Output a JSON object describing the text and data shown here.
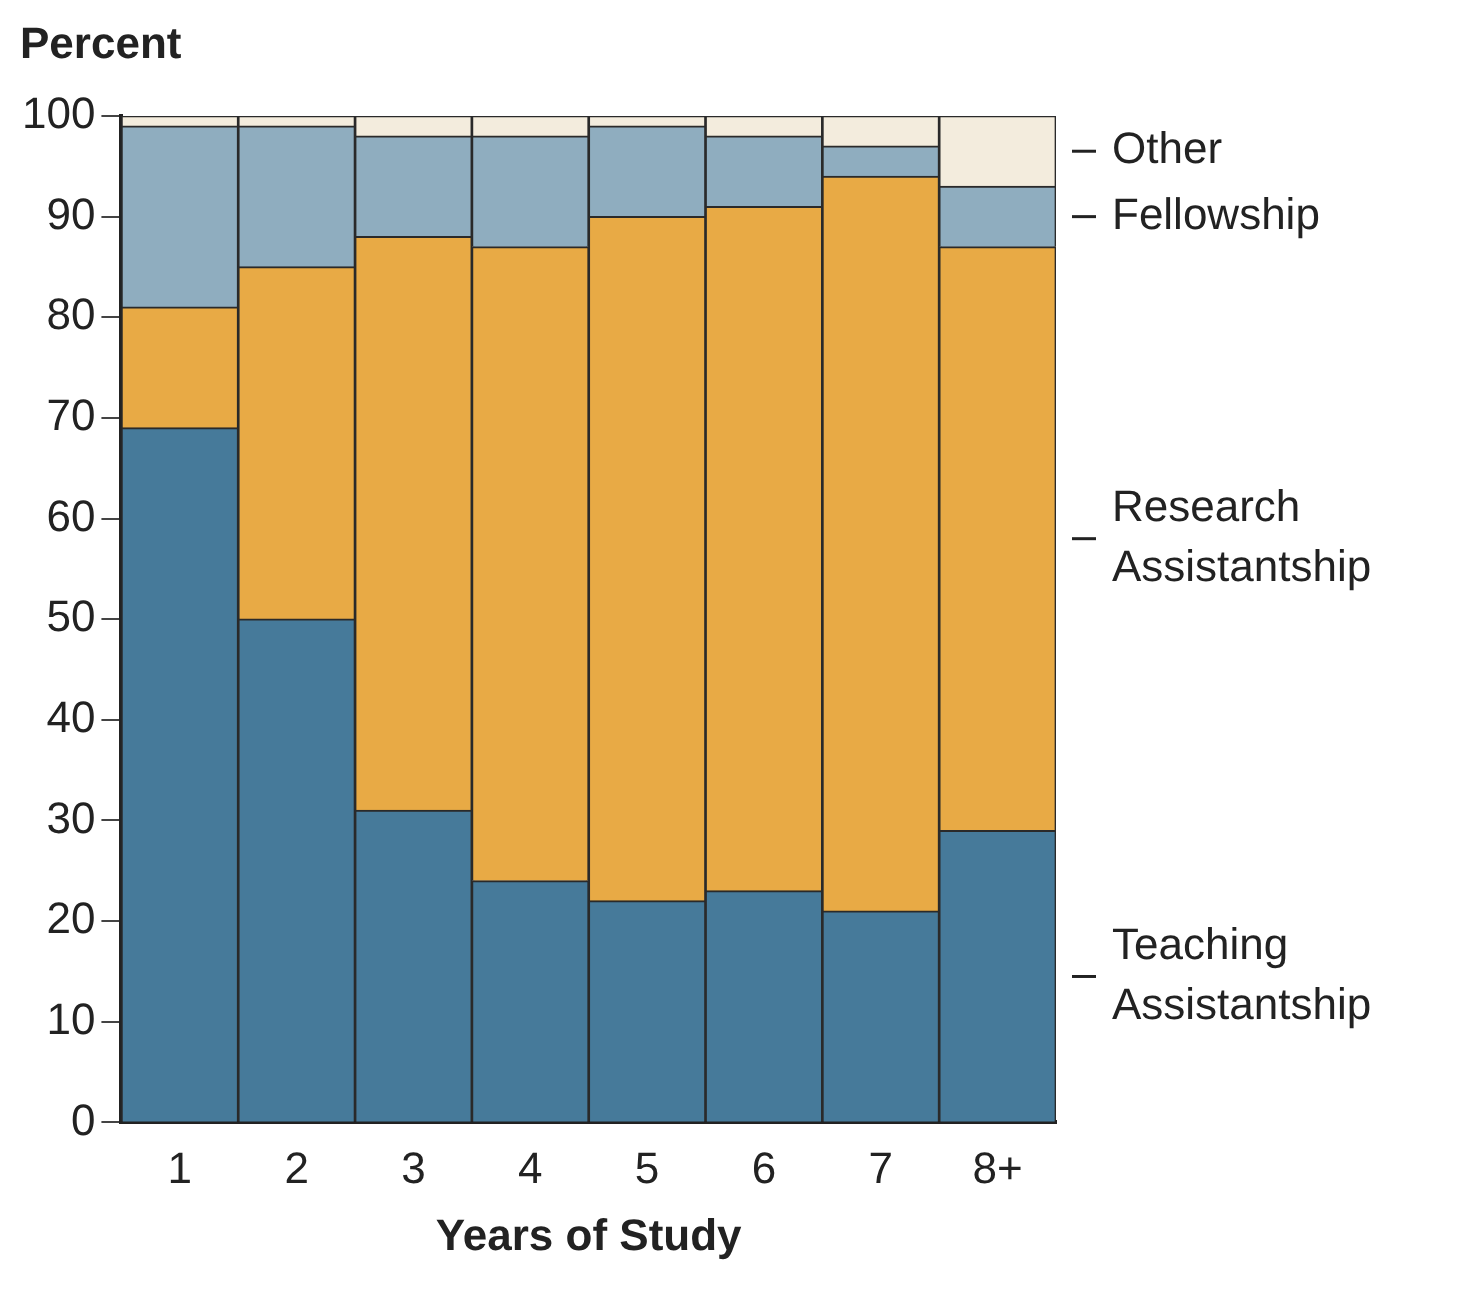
{
  "chart_data": {
    "type": "bar",
    "stacked": true,
    "xlabel": "Years of Study",
    "ylabel": "Percent",
    "categories": [
      "1",
      "2",
      "3",
      "4",
      "5",
      "6",
      "7",
      "8+"
    ],
    "series": [
      {
        "name": "Teaching Assistantship",
        "color": "#467a9a",
        "values": [
          69,
          50,
          31,
          24,
          22,
          23,
          21,
          29
        ]
      },
      {
        "name": "Research Assistantship",
        "color": "#e8aa45",
        "values": [
          12,
          35,
          57,
          63,
          68,
          68,
          73,
          58
        ]
      },
      {
        "name": "Fellowship",
        "color": "#8fadbf",
        "values": [
          18,
          14,
          10,
          11,
          9,
          7,
          3,
          6
        ]
      },
      {
        "name": "Other",
        "color": "#f3ecdd",
        "values": [
          1,
          1,
          2,
          2,
          1,
          2,
          3,
          7
        ]
      }
    ],
    "ylim": [
      0,
      100
    ],
    "yticks": [
      0,
      10,
      20,
      30,
      40,
      50,
      60,
      70,
      80,
      90,
      100
    ],
    "grid": false
  }
}
